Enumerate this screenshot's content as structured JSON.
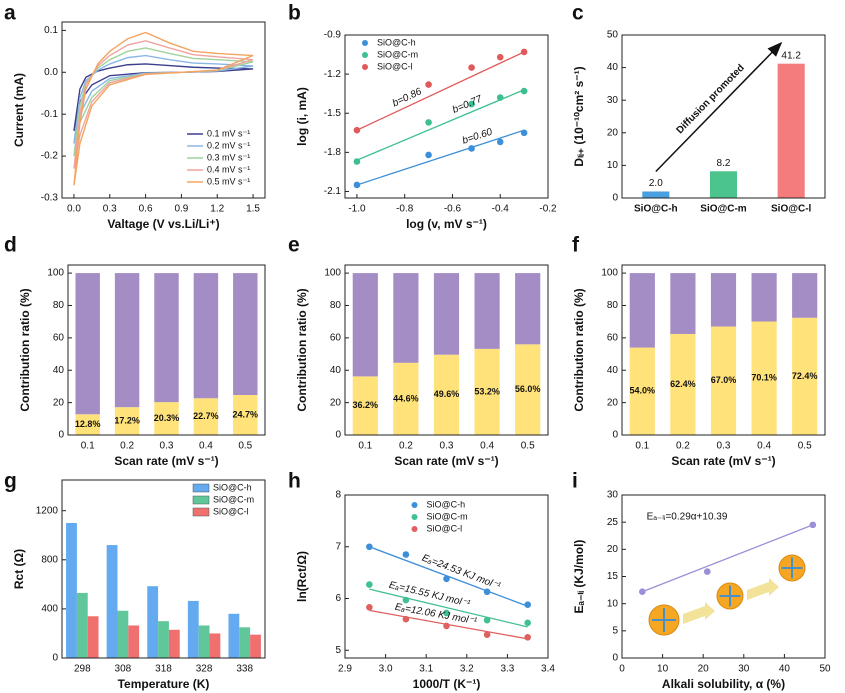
{
  "chart_data": [
    {
      "type": "line",
      "panel": "a",
      "x": [
        0.0,
        0.05,
        0.1,
        0.2,
        0.3,
        0.45,
        0.6,
        0.8,
        1.0,
        1.2,
        1.5,
        1.2,
        0.9,
        0.6,
        0.3,
        0.15,
        0.05,
        0.0
      ],
      "series": [
        {
          "name": "0.1 mV s⁻¹",
          "color": "#3b3f8c",
          "values": [
            -0.14,
            -0.04,
            -0.012,
            0.003,
            0.01,
            0.018,
            0.02,
            0.016,
            0.012,
            0.01,
            0.008,
            0.002,
            0.0,
            -0.001,
            -0.008,
            -0.03,
            -0.07,
            -0.14
          ]
        },
        {
          "name": "0.2 mV s⁻¹",
          "color": "#8ab6e6",
          "values": [
            -0.17,
            -0.06,
            -0.02,
            0.005,
            0.02,
            0.035,
            0.04,
            0.03,
            0.022,
            0.02,
            0.015,
            0.003,
            0.0,
            -0.002,
            -0.015,
            -0.045,
            -0.1,
            -0.17
          ]
        },
        {
          "name": "0.3 mV s⁻¹",
          "color": "#9fd39a",
          "values": [
            -0.2,
            -0.08,
            -0.025,
            0.01,
            0.03,
            0.05,
            0.058,
            0.045,
            0.033,
            0.03,
            0.025,
            0.004,
            0.0,
            -0.003,
            -0.02,
            -0.06,
            -0.12,
            -0.2
          ]
        },
        {
          "name": "0.4 mV s⁻¹",
          "color": "#f0a3a0",
          "values": [
            -0.23,
            -0.1,
            -0.03,
            0.015,
            0.04,
            0.065,
            0.075,
            0.058,
            0.042,
            0.037,
            0.03,
            0.005,
            0.0,
            -0.004,
            -0.025,
            -0.07,
            -0.15,
            -0.23
          ]
        },
        {
          "name": "0.5 mV s⁻¹",
          "color": "#f4a460",
          "values": [
            -0.27,
            -0.12,
            -0.04,
            0.02,
            0.05,
            0.08,
            0.095,
            0.07,
            0.05,
            0.045,
            0.04,
            0.005,
            0.0,
            -0.005,
            -0.03,
            -0.08,
            -0.17,
            -0.27
          ]
        }
      ],
      "xlim": [
        -0.1,
        1.6
      ],
      "ylim": [
        -0.3,
        0.12
      ],
      "xticks": [
        {
          "value": 0,
          "label": "0.0"
        },
        0.3,
        0.6,
        0.9,
        1.2,
        1.5
      ],
      "yticks": [
        -0.3,
        -0.2,
        -0.1,
        {
          "value": 0,
          "label": "0.0"
        },
        0.1
      ],
      "xlabel": "Valtage (V vs.Li/Li⁺)",
      "ylabel": "Current (mA)",
      "legend": "lower right"
    },
    {
      "type": "scatter",
      "panel": "b",
      "x": [
        -1.0,
        -0.7,
        -0.52,
        -0.4,
        -0.3
      ],
      "fit_x": [
        -1.0,
        -0.3
      ],
      "series": [
        {
          "name": "SiO@C-h",
          "color": "#3d8fd9",
          "values": [
            -2.05,
            -1.82,
            -1.77,
            -1.72,
            -1.65
          ],
          "fit_values": [
            -2.05,
            -1.63
          ],
          "annotation": "b=0.60"
        },
        {
          "name": "SiO@C-m",
          "color": "#3cc08f",
          "values": [
            -1.87,
            -1.57,
            -1.43,
            -1.38,
            -1.33
          ],
          "fit_values": [
            -1.86,
            -1.32
          ],
          "annotation": "b=0.77"
        },
        {
          "name": "SiO@C-l",
          "color": "#e05a5a",
          "values": [
            -1.63,
            -1.28,
            -1.15,
            -1.07,
            -1.03
          ],
          "fit_values": [
            -1.63,
            -1.03
          ],
          "annotation": "b=0.86"
        }
      ],
      "xlim": [
        -1.05,
        -0.2
      ],
      "ylim": [
        -2.15,
        -0.9
      ],
      "xticks": [
        {
          "value": -1.0,
          "label": "-1.0"
        },
        -0.8,
        -0.6,
        -0.4,
        -0.2
      ],
      "yticks": [
        -2.1,
        -1.8,
        -1.5,
        -1.2,
        -0.9
      ],
      "xlabel": "log (v, mV s⁻¹)",
      "ylabel": "log (i, mA)",
      "legend": "upper left"
    },
    {
      "type": "bar",
      "panel": "c",
      "categories": [
        "SiO@C-h",
        "SiO@C-m",
        "SiO@C-l"
      ],
      "values": [
        2.0,
        8.2,
        41.2
      ],
      "value_labels": [
        "2.0",
        "8.2",
        "41.2"
      ],
      "colors": [
        "#4a9fe0",
        "#4cc48e",
        "#f47c7c"
      ],
      "ylim": [
        0,
        50
      ],
      "yticks": [
        0,
        10,
        20,
        30,
        40,
        50
      ],
      "ylabel": "Dₗᵢ₊ (10⁻¹⁰cm² s⁻¹)",
      "annotation": "Diffusion promoted"
    },
    {
      "type": "bar",
      "panel": "d",
      "stacked": true,
      "categories": [
        "0.1",
        "0.2",
        "0.3",
        "0.4",
        "0.5"
      ],
      "series": [
        {
          "color": "#ffe27a",
          "values": [
            12.8,
            17.2,
            20.3,
            22.7,
            24.7
          ],
          "value_labels": [
            "12.8%",
            "17.2%",
            "20.3%",
            "22.7%",
            "24.7%"
          ]
        },
        {
          "color": "#a48cc4",
          "values": [
            87.2,
            82.8,
            79.7,
            77.3,
            75.3
          ]
        }
      ],
      "ylim": [
        0,
        105
      ],
      "yticks": [
        0,
        20,
        40,
        60,
        80,
        100
      ],
      "xlabel": "Scan rate (mV s⁻¹)",
      "ylabel": "Contribution ratio (%)"
    },
    {
      "type": "bar",
      "panel": "e",
      "stacked": true,
      "categories": [
        "0.1",
        "0.2",
        "0.3",
        "0.4",
        "0.5"
      ],
      "series": [
        {
          "color": "#ffe27a",
          "values": [
            36.2,
            44.6,
            49.6,
            53.2,
            56.0
          ],
          "value_labels": [
            "36.2%",
            "44.6%",
            "49.6%",
            "53.2%",
            "56.0%"
          ]
        },
        {
          "color": "#a48cc4",
          "values": [
            63.8,
            55.4,
            50.4,
            46.8,
            44.0
          ]
        }
      ],
      "ylim": [
        0,
        105
      ],
      "yticks": [
        0,
        20,
        40,
        60,
        80,
        100
      ],
      "xlabel": "Scan rate (mV s⁻¹)",
      "ylabel": "Contribution ratio (%)"
    },
    {
      "type": "bar",
      "panel": "f",
      "stacked": true,
      "categories": [
        "0.1",
        "0.2",
        "0.3",
        "0.4",
        "0.5"
      ],
      "series": [
        {
          "color": "#ffe27a",
          "values": [
            54.0,
            62.4,
            67.0,
            70.1,
            72.4
          ],
          "value_labels": [
            "54.0%",
            "62.4%",
            "67.0%",
            "70.1%",
            "72.4%"
          ]
        },
        {
          "color": "#a48cc4",
          "values": [
            46.0,
            37.6,
            33.0,
            29.9,
            27.6
          ]
        }
      ],
      "ylim": [
        0,
        105
      ],
      "yticks": [
        0,
        20,
        40,
        60,
        80,
        100
      ],
      "xlabel": "Scan rate (mV s⁻¹)",
      "ylabel": "Contribution ratio (%)"
    },
    {
      "type": "bar",
      "panel": "g",
      "categories": [
        "298",
        "308",
        "318",
        "328",
        "338"
      ],
      "series": [
        {
          "name": "SiO@C-h",
          "color": "#63aaf0",
          "values": [
            1100,
            920,
            585,
            465,
            360
          ]
        },
        {
          "name": "SiO@C-m",
          "color": "#5fc79a",
          "values": [
            530,
            385,
            300,
            265,
            250
          ]
        },
        {
          "name": "SiO@C-l",
          "color": "#f07070",
          "values": [
            340,
            265,
            230,
            200,
            190
          ]
        }
      ],
      "ylim": [
        0,
        1450
      ],
      "yticks": [
        0,
        400,
        800,
        1200
      ],
      "xlabel": "Temperature (K)",
      "ylabel": "Rct (Ω)",
      "legend": "upper right"
    },
    {
      "type": "scatter",
      "panel": "h",
      "x": [
        2.96,
        3.05,
        3.15,
        3.25,
        3.35
      ],
      "fit_x": [
        2.96,
        3.35
      ],
      "series": [
        {
          "name": "SiO@C-h",
          "color": "#3d8fd9",
          "values": [
            7.0,
            6.85,
            6.38,
            6.13,
            5.88
          ],
          "fit_values": [
            7.0,
            5.85
          ],
          "annotation": "Eₐ=24.53 KJ mol⁻¹"
        },
        {
          "name": "SiO@C-m",
          "color": "#40c090",
          "values": [
            6.27,
            5.97,
            5.72,
            5.58,
            5.53
          ],
          "fit_values": [
            6.18,
            5.45
          ],
          "annotation": "Eₐ=15.55 KJ mol⁻¹"
        },
        {
          "name": "SiO@C-l",
          "color": "#e06060",
          "values": [
            5.83,
            5.6,
            5.47,
            5.3,
            5.25
          ],
          "fit_values": [
            5.77,
            5.22
          ],
          "annotation": "Eₐ=12.06 KJ mol⁻¹"
        }
      ],
      "xlim": [
        2.9,
        3.4
      ],
      "ylim": [
        4.85,
        8
      ],
      "xticks": [
        2.9,
        {
          "value": 3.0,
          "label": "3.0"
        },
        3.1,
        3.2,
        3.3,
        3.4
      ],
      "yticks": [
        5,
        6,
        7,
        8
      ],
      "xlabel": "1000/T (K⁻¹)",
      "ylabel": "ln(Rct/Ω)",
      "legend": "upper center"
    },
    {
      "type": "scatter",
      "panel": "i",
      "x": [
        5,
        21,
        47
      ],
      "fit_x": [
        5,
        47
      ],
      "series": [
        {
          "color": "#9b8fd8",
          "values": [
            12.2,
            15.9,
            24.5
          ],
          "fit_values": [
            12.2,
            24.5
          ]
        }
      ],
      "annotation": "Eₐ₋ₗᵢ=0.29α+10.39",
      "xlim": [
        0,
        50
      ],
      "ylim": [
        0,
        30
      ],
      "xticks": [
        0,
        10,
        20,
        30,
        40,
        50
      ],
      "yticks": [
        0,
        5,
        10,
        15,
        20,
        25,
        30
      ],
      "xlabel": "Alkali solubility, α (%)",
      "ylabel": "Eₐ₋ₗᵢ (KJ/mol)"
    }
  ]
}
